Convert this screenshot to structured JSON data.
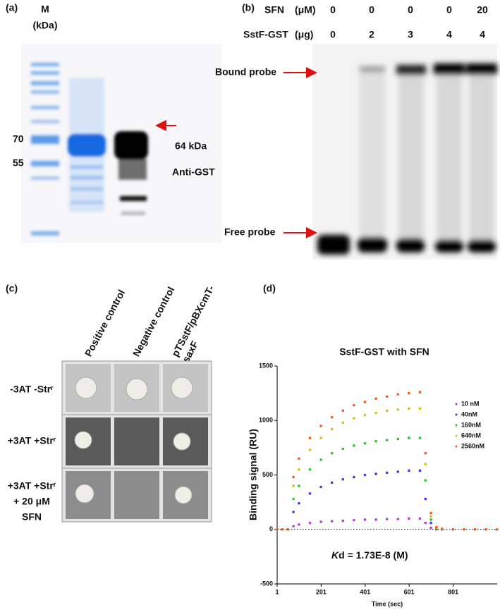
{
  "panel_a": {
    "label": "(a)",
    "marker_title": "M",
    "marker_unit": "(kDa)",
    "marker_sizes": [
      70,
      55
    ],
    "band_label": "64 kDa",
    "blot_label": "Anti-GST"
  },
  "panel_b": {
    "label": "(b)",
    "rows": [
      {
        "name": "SFN",
        "unit": "(μM)",
        "values": [
          0,
          0,
          0,
          0,
          20
        ]
      },
      {
        "name": "SstF-GST",
        "unit": "(μg)",
        "values": [
          0,
          2,
          3,
          4,
          4
        ]
      }
    ],
    "bound_label": "Bound probe",
    "free_label": "Free probe"
  },
  "panel_c": {
    "label": "(c)",
    "columns": [
      "Positive control",
      "Negative control",
      [
        "pTSstF/pBXcmT-",
        "saxF"
      ]
    ],
    "rows": [
      [
        "-3AT -Strʳ"
      ],
      [
        "+3AT +Strʳ"
      ],
      [
        "+3AT +Strʳ",
        "+ 20 μM",
        "SFN"
      ]
    ]
  },
  "chart_data": {
    "type": "scatter",
    "panel_label": "(d)",
    "title": "SstF-GST with SFN",
    "x_label": "Time (sec)",
    "y_label": "Binding signal (RU)",
    "annotation_italic": "K",
    "annotation": "d = 1.73E-8 (M)",
    "xlim": [
      1,
      1001
    ],
    "xticks": [
      1,
      201,
      401,
      601,
      801
    ],
    "ylim": [
      -500,
      1500
    ],
    "yticks": [
      -500,
      0,
      500,
      1000,
      1500
    ],
    "x": [
      1,
      25,
      50,
      75,
      100,
      150,
      200,
      250,
      300,
      350,
      400,
      450,
      500,
      550,
      600,
      650,
      675,
      700,
      725,
      750,
      800,
      850,
      900,
      950,
      1000
    ],
    "series": [
      {
        "name": "10 nM",
        "color": "#b040d0",
        "values": [
          0,
          0,
          0,
          30,
          45,
          60,
          70,
          75,
          80,
          85,
          90,
          90,
          95,
          95,
          100,
          100,
          60,
          15,
          0,
          0,
          0,
          0,
          0,
          0,
          0
        ]
      },
      {
        "name": "40nM",
        "color": "#3a3ae0",
        "values": [
          0,
          0,
          0,
          160,
          240,
          330,
          390,
          430,
          460,
          480,
          500,
          510,
          520,
          530,
          540,
          540,
          280,
          60,
          5,
          0,
          0,
          0,
          0,
          0,
          0
        ]
      },
      {
        "name": "160nM",
        "color": "#30c030",
        "values": [
          0,
          0,
          0,
          280,
          400,
          550,
          640,
          700,
          740,
          770,
          790,
          810,
          820,
          830,
          840,
          840,
          450,
          90,
          10,
          0,
          0,
          0,
          0,
          0,
          0
        ]
      },
      {
        "name": "640nM",
        "color": "#d0c020",
        "values": [
          0,
          0,
          0,
          400,
          550,
          730,
          840,
          920,
          980,
          1020,
          1050,
          1070,
          1090,
          1100,
          1110,
          1110,
          600,
          120,
          15,
          5,
          0,
          0,
          0,
          0,
          0
        ]
      },
      {
        "name": "2560nM",
        "color": "#f05a20",
        "values": [
          0,
          0,
          0,
          480,
          650,
          840,
          950,
          1030,
          1090,
          1140,
          1170,
          1200,
          1220,
          1240,
          1250,
          1260,
          700,
          150,
          20,
          5,
          0,
          0,
          0,
          0,
          0
        ]
      }
    ]
  }
}
